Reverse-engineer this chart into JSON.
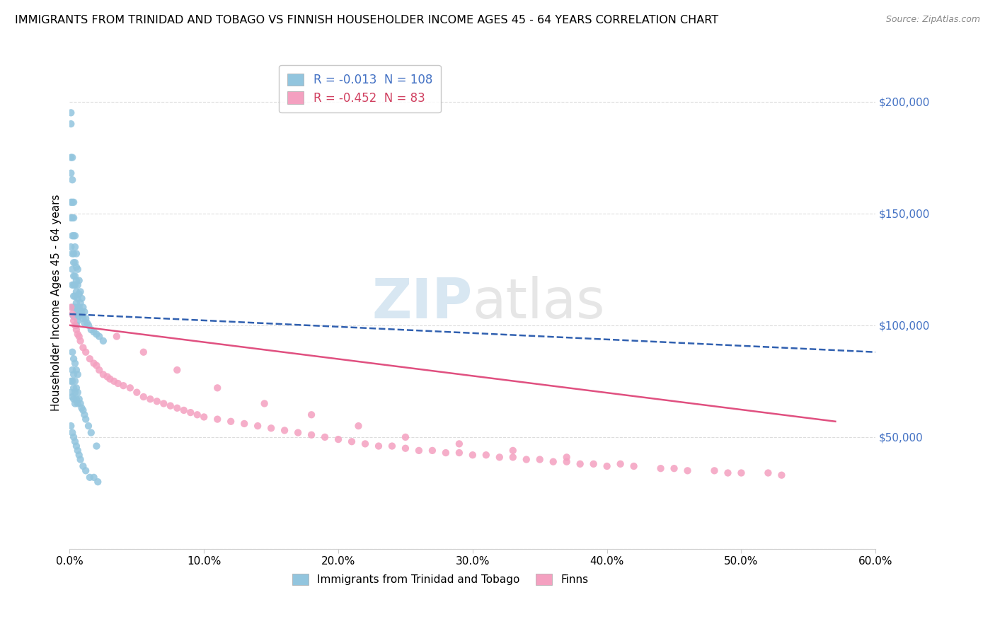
{
  "title": "IMMIGRANTS FROM TRINIDAD AND TOBAGO VS FINNISH HOUSEHOLDER INCOME AGES 45 - 64 YEARS CORRELATION CHART",
  "source": "Source: ZipAtlas.com",
  "ylabel": "Householder Income Ages 45 - 64 years",
  "legend_label1": "Immigrants from Trinidad and Tobago",
  "legend_label2": "Finns",
  "R1": -0.013,
  "N1": 108,
  "R2": -0.452,
  "N2": 83,
  "color1": "#92C5DE",
  "color2": "#F4A0C0",
  "trendline1_color": "#3060B0",
  "trendline2_color": "#E05080",
  "xmin": 0.0,
  "xmax": 0.6,
  "ymin": 0,
  "ymax": 220000,
  "yticks": [
    0,
    50000,
    100000,
    150000,
    200000
  ],
  "ytick_labels": [
    "",
    "$50,000",
    "$100,000",
    "$150,000",
    "$200,000"
  ],
  "xticks": [
    0.0,
    0.1,
    0.2,
    0.3,
    0.4,
    0.5,
    0.6
  ],
  "xtick_labels": [
    "0.0%",
    "10.0%",
    "20.0%",
    "30.0%",
    "40.0%",
    "50.0%",
    "60.0%"
  ],
  "background_color": "#FFFFFF",
  "blue_x": [
    0.001,
    0.001,
    0.001,
    0.001,
    0.001,
    0.001,
    0.001,
    0.002,
    0.002,
    0.002,
    0.002,
    0.002,
    0.002,
    0.002,
    0.002,
    0.002,
    0.003,
    0.003,
    0.003,
    0.003,
    0.003,
    0.003,
    0.003,
    0.003,
    0.003,
    0.003,
    0.004,
    0.004,
    0.004,
    0.004,
    0.004,
    0.004,
    0.004,
    0.005,
    0.005,
    0.005,
    0.005,
    0.005,
    0.005,
    0.005,
    0.006,
    0.006,
    0.006,
    0.006,
    0.006,
    0.007,
    0.007,
    0.007,
    0.007,
    0.008,
    0.008,
    0.008,
    0.009,
    0.009,
    0.01,
    0.01,
    0.011,
    0.011,
    0.012,
    0.013,
    0.014,
    0.016,
    0.018,
    0.02,
    0.022,
    0.025,
    0.001,
    0.001,
    0.002,
    0.002,
    0.002,
    0.003,
    0.003,
    0.003,
    0.004,
    0.004,
    0.004,
    0.005,
    0.005,
    0.006,
    0.006,
    0.007,
    0.008,
    0.009,
    0.01,
    0.011,
    0.012,
    0.014,
    0.016,
    0.02,
    0.001,
    0.002,
    0.003,
    0.004,
    0.005,
    0.006,
    0.007,
    0.008,
    0.01,
    0.012,
    0.015,
    0.018,
    0.021,
    0.002,
    0.003,
    0.004,
    0.005,
    0.006
  ],
  "blue_y": [
    195000,
    190000,
    175000,
    168000,
    155000,
    148000,
    135000,
    175000,
    165000,
    155000,
    148000,
    140000,
    132000,
    125000,
    118000,
    108000,
    155000,
    148000,
    140000,
    132000,
    128000,
    122000,
    118000,
    113000,
    108000,
    104000,
    140000,
    135000,
    128000,
    122000,
    118000,
    113000,
    108000,
    132000,
    126000,
    120000,
    115000,
    110000,
    105000,
    100000,
    125000,
    118000,
    112000,
    107000,
    102000,
    120000,
    114000,
    108000,
    104000,
    115000,
    110000,
    105000,
    112000,
    106000,
    108000,
    103000,
    106000,
    101000,
    103000,
    101000,
    100000,
    98000,
    97000,
    96000,
    95000,
    93000,
    75000,
    70000,
    80000,
    75000,
    68000,
    78000,
    72000,
    67000,
    75000,
    70000,
    65000,
    72000,
    67000,
    70000,
    65000,
    67000,
    65000,
    63000,
    62000,
    60000,
    58000,
    55000,
    52000,
    46000,
    55000,
    52000,
    50000,
    48000,
    46000,
    44000,
    42000,
    40000,
    37000,
    35000,
    32000,
    32000,
    30000,
    88000,
    85000,
    83000,
    80000,
    78000
  ],
  "pink_x": [
    0.001,
    0.002,
    0.003,
    0.004,
    0.005,
    0.006,
    0.007,
    0.008,
    0.01,
    0.012,
    0.015,
    0.018,
    0.02,
    0.022,
    0.025,
    0.028,
    0.03,
    0.033,
    0.036,
    0.04,
    0.045,
    0.05,
    0.055,
    0.06,
    0.065,
    0.07,
    0.075,
    0.08,
    0.085,
    0.09,
    0.095,
    0.1,
    0.11,
    0.12,
    0.13,
    0.14,
    0.15,
    0.16,
    0.17,
    0.18,
    0.19,
    0.2,
    0.21,
    0.22,
    0.23,
    0.24,
    0.25,
    0.26,
    0.27,
    0.28,
    0.29,
    0.3,
    0.31,
    0.32,
    0.33,
    0.34,
    0.35,
    0.36,
    0.37,
    0.38,
    0.39,
    0.4,
    0.42,
    0.44,
    0.46,
    0.48,
    0.5,
    0.52,
    0.53,
    0.035,
    0.055,
    0.08,
    0.11,
    0.145,
    0.18,
    0.215,
    0.25,
    0.29,
    0.33,
    0.37,
    0.41,
    0.45,
    0.49
  ],
  "pink_y": [
    108000,
    105000,
    102000,
    100000,
    98000,
    96000,
    95000,
    93000,
    90000,
    88000,
    85000,
    83000,
    82000,
    80000,
    78000,
    77000,
    76000,
    75000,
    74000,
    73000,
    72000,
    70000,
    68000,
    67000,
    66000,
    65000,
    64000,
    63000,
    62000,
    61000,
    60000,
    59000,
    58000,
    57000,
    56000,
    55000,
    54000,
    53000,
    52000,
    51000,
    50000,
    49000,
    48000,
    47000,
    46000,
    46000,
    45000,
    44000,
    44000,
    43000,
    43000,
    42000,
    42000,
    41000,
    41000,
    40000,
    40000,
    39000,
    39000,
    38000,
    38000,
    37000,
    37000,
    36000,
    35000,
    35000,
    34000,
    34000,
    33000,
    95000,
    88000,
    80000,
    72000,
    65000,
    60000,
    55000,
    50000,
    47000,
    44000,
    41000,
    38000,
    36000,
    34000
  ]
}
